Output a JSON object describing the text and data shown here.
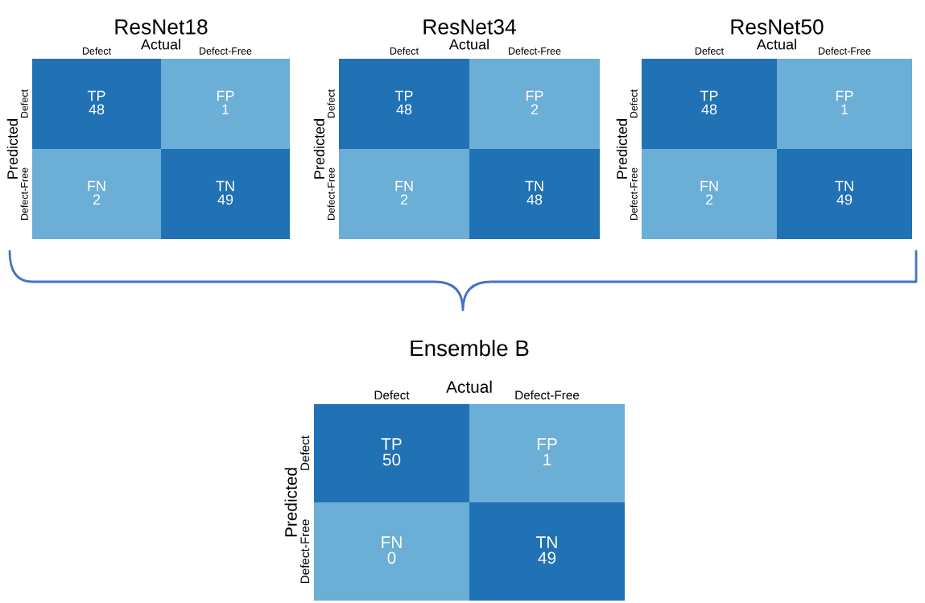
{
  "chart_data": [
    {
      "type": "heatmap",
      "title": "ResNet18",
      "xlabel": "Actual",
      "ylabel": "Predicted",
      "categories": [
        "Defect",
        "Defect-Free"
      ],
      "y_categories": [
        "Defect",
        "Defect-Free"
      ],
      "cells": [
        [
          48,
          1
        ],
        [
          2,
          49
        ]
      ],
      "data_labels": true,
      "annotations": [
        "TP",
        "FP",
        "FN",
        "TN"
      ],
      "colors": [
        [
          "#2171b5",
          "#6baed6"
        ],
        [
          "#6baed6",
          "#2171b5"
        ]
      ]
    },
    {
      "type": "heatmap",
      "title": "ResNet34",
      "xlabel": "Actual",
      "ylabel": "Predicted",
      "categories": [
        "Defect",
        "Defect-Free"
      ],
      "y_categories": [
        "Defect",
        "Defect-Free"
      ],
      "cells": [
        [
          48,
          2
        ],
        [
          2,
          48
        ]
      ],
      "data_labels": true,
      "annotations": [
        "TP",
        "FP",
        "FN",
        "TN"
      ],
      "colors": [
        [
          "#2171b5",
          "#6baed6"
        ],
        [
          "#6baed6",
          "#2171b5"
        ]
      ]
    },
    {
      "type": "heatmap",
      "title": "ResNet50",
      "xlabel": "Actual",
      "ylabel": "Predicted",
      "categories": [
        "Defect",
        "Defect-Free"
      ],
      "y_categories": [
        "Defect",
        "Defect-Free"
      ],
      "cells": [
        [
          48,
          1
        ],
        [
          2,
          49
        ]
      ],
      "data_labels": true,
      "annotations": [
        "TP",
        "FP",
        "FN",
        "TN"
      ],
      "colors": [
        [
          "#2171b5",
          "#6baed6"
        ],
        [
          "#6baed6",
          "#2171b5"
        ]
      ]
    },
    {
      "type": "heatmap",
      "title": "Ensemble B",
      "xlabel": "Actual",
      "ylabel": "Predicted",
      "categories": [
        "Defect",
        "Defect-Free"
      ],
      "y_categories": [
        "Defect",
        "Defect-Free"
      ],
      "cells": [
        [
          50,
          1
        ],
        [
          0,
          49
        ]
      ],
      "data_labels": true,
      "annotations": [
        "TP",
        "FP",
        "FN",
        "TN"
      ],
      "colors": [
        [
          "#2171b5",
          "#6baed6"
        ],
        [
          "#6baed6",
          "#2171b5"
        ]
      ]
    }
  ]
}
